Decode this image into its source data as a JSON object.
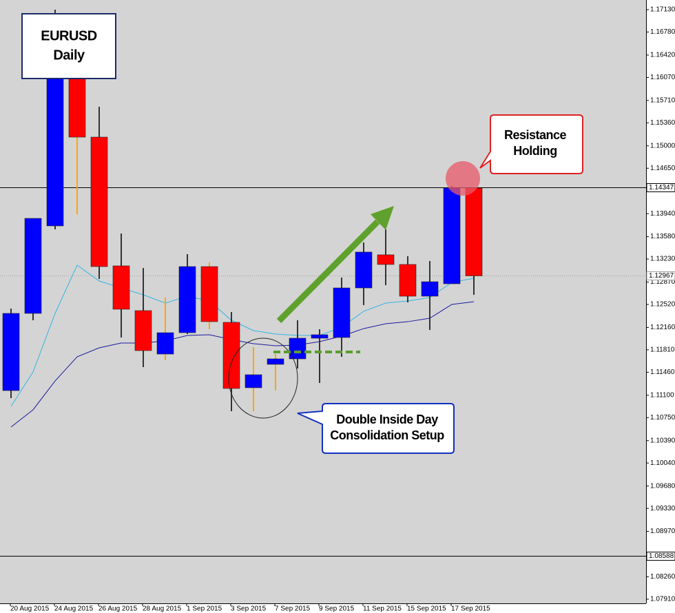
{
  "chart_data": {
    "type": "candlestick",
    "up_color": "#0000ff",
    "down_color": "#ff0000",
    "categories": [
      "20 Aug 2015",
      null,
      "24 Aug 2015",
      null,
      "26 Aug 2015",
      null,
      "28 Aug 2015",
      null,
      "1 Sep 2015",
      null,
      "3 Sep 2015",
      null,
      "7 Sep 2015",
      null,
      "9 Sep 2015",
      null,
      "11 Sep 2015",
      null,
      "15 Sep 2015",
      null,
      "17 Sep 2015",
      null
    ],
    "open": [
      1.11173,
      1.1238,
      1.13748,
      1.162,
      1.15137,
      1.13123,
      1.12423,
      1.11744,
      1.12078,
      1.13112,
      1.1224,
      1.11217,
      1.11583,
      1.11669,
      1.11992,
      1.12003,
      1.12778,
      1.13296,
      1.13145,
      1.12649,
      1.12843,
      1.1434
    ],
    "high": [
      1.12455,
      1.13866,
      1.1713,
      1.163,
      1.15611,
      1.1363,
      1.1309,
      1.12628,
      1.13306,
      1.13177,
      1.12401,
      1.11852,
      1.11744,
      1.12272,
      1.12132,
      1.1294,
      1.13489,
      1.13694,
      1.13274,
      1.13199,
      1.14373,
      1.14347
    ],
    "low": [
      1.11055,
      1.12272,
      1.13694,
      1.13931,
      1.12918,
      1.12003,
      1.1154,
      1.11647,
      1.12057,
      1.12132,
      1.1085,
      1.1085,
      1.11174,
      1.11518,
      1.11292,
      1.11701,
      1.12509,
      1.12821,
      1.12552,
      1.12121,
      1.12843,
      1.12671
    ],
    "close": [
      1.1238,
      1.13866,
      1.162,
      1.15137,
      1.13112,
      1.12445,
      1.11798,
      1.12078,
      1.13112,
      1.12251,
      1.11206,
      1.11421,
      1.11669,
      1.11992,
      1.12046,
      1.12778,
      1.13339,
      1.13145,
      1.12649,
      1.12875,
      1.1434,
      1.12967
    ],
    "wick_colors": [
      "#333333",
      "#333333",
      "#333333",
      "#ffa500",
      "#333333",
      "#333333",
      "#333333",
      "#ffa500",
      "#333333",
      "#ffa500",
      "#333333",
      "#ffa500",
      "#ffa500",
      "#333333",
      "#333333",
      "#333333",
      "#333333",
      "#333333",
      "#333333",
      "#333333",
      "#333333",
      "#333333"
    ],
    "moving_averages": [
      {
        "color": "#33b5e5",
        "values": [
          1.10926,
          1.11464,
          1.1238,
          1.13134,
          1.12886,
          1.12778,
          1.12671,
          1.12541,
          1.12649,
          1.12574,
          1.12272,
          1.12111,
          1.12057,
          1.12035,
          1.12035,
          1.12164,
          1.12412,
          1.12541,
          1.12574,
          1.12628,
          1.12865,
          1.12929
        ]
      },
      {
        "color": "#1a1aa0",
        "values": [
          1.10603,
          1.10872,
          1.11324,
          1.11701,
          1.11841,
          1.11917,
          1.11917,
          1.11949,
          1.12035,
          1.12046,
          1.11971,
          1.11906,
          1.11874,
          1.11884,
          1.11938,
          1.12024,
          1.12142,
          1.12218,
          1.1225,
          1.12304,
          1.1252,
          1.12563
        ]
      }
    ],
    "ylim": [
      1.07845,
      1.17281
    ],
    "yticks": [
      {
        "value": 1.1713,
        "label": "1.17130"
      },
      {
        "value": 1.1678,
        "label": "1.16780"
      },
      {
        "value": 1.1642,
        "label": "1.16420"
      },
      {
        "value": 1.1607,
        "label": "1.16070"
      },
      {
        "value": 1.1571,
        "label": "1.15710"
      },
      {
        "value": 1.1536,
        "label": "1.15360"
      },
      {
        "value": 1.15,
        "label": "1.15000"
      },
      {
        "value": 1.1465,
        "label": "1.14650"
      },
      {
        "value": 1.1394,
        "label": "1.13940"
      },
      {
        "value": 1.1358,
        "label": "1.13580"
      },
      {
        "value": 1.1323,
        "label": "1.13230"
      },
      {
        "value": 1.1287,
        "label": "1.12870"
      },
      {
        "value": 1.1252,
        "label": "1.12520"
      },
      {
        "value": 1.1216,
        "label": "1.12160"
      },
      {
        "value": 1.1181,
        "label": "1.11810"
      },
      {
        "value": 1.1146,
        "label": "1.11460"
      },
      {
        "value": 1.111,
        "label": "1.11100"
      },
      {
        "value": 1.1075,
        "label": "1.10750"
      },
      {
        "value": 1.1039,
        "label": "1.10390"
      },
      {
        "value": 1.1004,
        "label": "1.10040"
      },
      {
        "value": 1.0968,
        "label": "1.09680"
      },
      {
        "value": 1.0933,
        "label": "1.09330"
      },
      {
        "value": 1.0897,
        "label": "1.08970"
      },
      {
        "value": 1.0826,
        "label": "1.08260"
      },
      {
        "value": 1.0791,
        "label": "1.07910"
      }
    ],
    "hlines": [
      {
        "value": 1.14347,
        "color": "#000000",
        "style": "solid"
      },
      {
        "value": 1.12967,
        "color": "#a0a0a0",
        "style": "dotted"
      },
      {
        "value": 1.08588,
        "color": "#000000",
        "style": "solid"
      }
    ],
    "annotations": [
      {
        "lines": [
          "EURUSD",
          "Daily"
        ]
      },
      {
        "lines": [
          "Resistance",
          "Holding"
        ]
      },
      {
        "lines": [
          "Double Inside Day",
          "Consolidation Setup"
        ]
      }
    ]
  }
}
